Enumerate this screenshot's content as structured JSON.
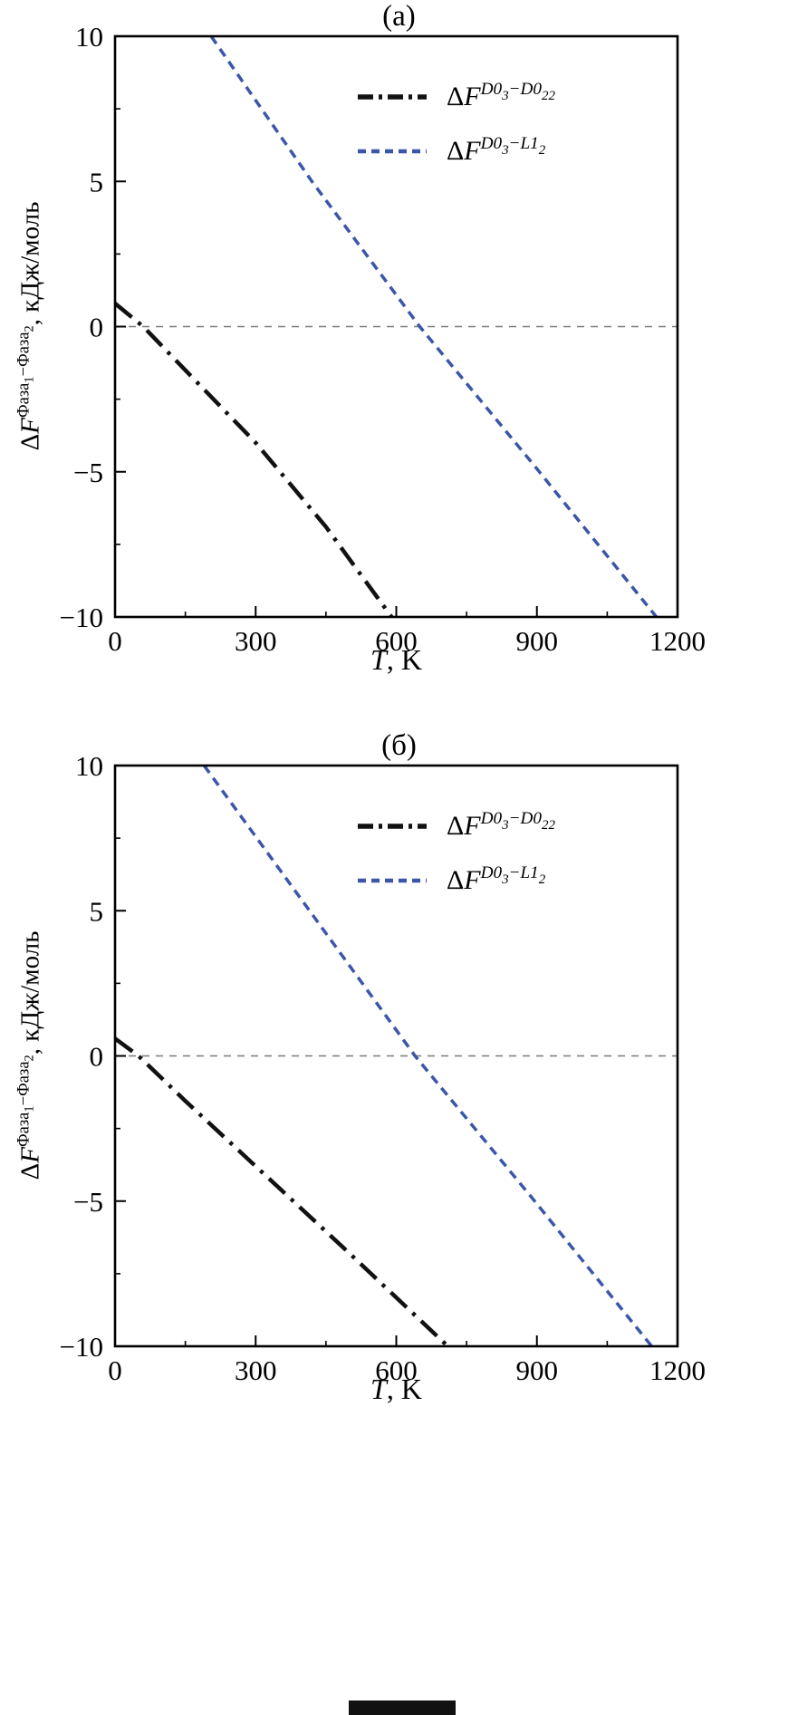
{
  "page": {
    "background": "#ffffff"
  },
  "chart_data": [
    {
      "type": "line",
      "title": "(а)",
      "xlabel": {
        "var": "T",
        "units": ", K",
        "text": "T, K"
      },
      "ylabel": {
        "delta": "Δ",
        "f": "F",
        "sup1": "Фаза",
        "sub1": "1",
        "minus": "−",
        "sup2": "Фаза",
        "sub2": "2",
        "units": ", кДж/моль",
        "text": "ΔF^{Фаза1−Фаза2}, кДж/моль"
      },
      "xlim": [
        0,
        1200
      ],
      "ylim": [
        -10,
        10
      ],
      "x_ticks": [
        0,
        300,
        600,
        900,
        1200
      ],
      "y_ticks": [
        -10,
        -5,
        0,
        5,
        10
      ],
      "x_minor_ticks": [
        150,
        450,
        750,
        1050
      ],
      "y_minor_ticks": [
        -7.5,
        -2.5,
        2.5,
        7.5
      ],
      "grid": false,
      "frame": true,
      "legend_position": "upper right",
      "zero_line": {
        "y": 0,
        "style": "dashed",
        "color": "#7a7a7a"
      },
      "series": [
        {
          "name": "ΔF^{D0₃−D0₂₂}",
          "style": "dash-dot",
          "color": "#111111",
          "width": 4.5,
          "x": [
            0,
            60,
            150,
            300,
            450,
            590
          ],
          "y": [
            0.8,
            0,
            -1.5,
            -4.0,
            -6.9,
            -10
          ]
        },
        {
          "name": "ΔF^{D0₃−L1₂}",
          "style": "dashed",
          "color": "#3b56a8",
          "width": 3.5,
          "x": [
            205,
            420,
            650,
            900,
            1155
          ],
          "y": [
            10,
            5,
            0,
            -4.9,
            -10
          ]
        }
      ],
      "legend": [
        {
          "delta": "Δ",
          "f": "F",
          "sup1": "D0",
          "sub1": "3",
          "minus": "−",
          "sup2": "D0",
          "sub2": "22",
          "text": "ΔF^{D0₃−D0₂₂}"
        },
        {
          "delta": "Δ",
          "f": "F",
          "sup1": "D0",
          "sub1": "3",
          "minus": "−",
          "sup2": "L1",
          "sub2": "2",
          "text": "ΔF^{D0₃−L1₂}"
        }
      ]
    },
    {
      "type": "line",
      "title": "(б)",
      "xlabel": {
        "var": "T",
        "units": ", K",
        "text": "T, K"
      },
      "ylabel": {
        "delta": "Δ",
        "f": "F",
        "sup1": "Фаза",
        "sub1": "1",
        "minus": "−",
        "sup2": "Фаза",
        "sub2": "2",
        "units": ", кДж/моль",
        "text": "ΔF^{Фаза1−Фаза2}, кДж/моль"
      },
      "xlim": [
        0,
        1200
      ],
      "ylim": [
        -10,
        10
      ],
      "x_ticks": [
        0,
        300,
        600,
        900,
        1200
      ],
      "y_ticks": [
        -10,
        -5,
        0,
        5,
        10
      ],
      "x_minor_ticks": [
        150,
        450,
        750,
        1050
      ],
      "y_minor_ticks": [
        -7.5,
        -2.5,
        2.5,
        7.5
      ],
      "grid": false,
      "frame": true,
      "legend_position": "upper right",
      "zero_line": {
        "y": 0,
        "style": "dashed",
        "color": "#7a7a7a"
      },
      "series": [
        {
          "name": "ΔF^{D0₃−D0₂₂}",
          "style": "dash-dot",
          "color": "#111111",
          "width": 4.5,
          "x": [
            0,
            50,
            150,
            300,
            500,
            710
          ],
          "y": [
            0.6,
            0,
            -1.55,
            -3.8,
            -6.8,
            -10
          ]
        },
        {
          "name": "ΔF^{D0₃−L1₂}",
          "style": "dashed",
          "color": "#3b56a8",
          "width": 3.5,
          "x": [
            190,
            415,
            640,
            890,
            1145
          ],
          "y": [
            10,
            5,
            0,
            -4.9,
            -10
          ]
        }
      ],
      "legend": [
        {
          "delta": "Δ",
          "f": "F",
          "sup1": "D0",
          "sub1": "3",
          "minus": "−",
          "sup2": "D0",
          "sub2": "22",
          "text": "ΔF^{D0₃−D0₂₂}"
        },
        {
          "delta": "Δ",
          "f": "F",
          "sup1": "D0",
          "sub1": "3",
          "minus": "−",
          "sup2": "L1",
          "sub2": "2",
          "text": "ΔF^{D0₃−L1₂}"
        }
      ]
    }
  ]
}
